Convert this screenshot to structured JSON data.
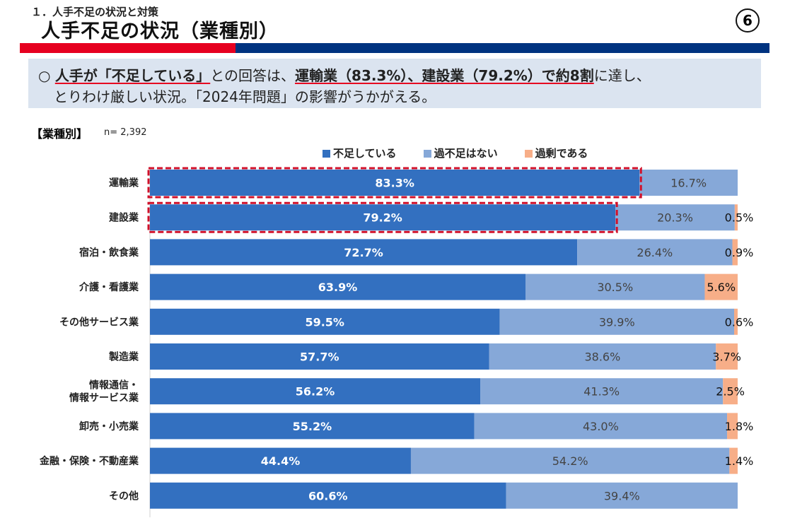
{
  "header": {
    "section": "１．人手不足の状況と対策",
    "title": "人手不足の状況（業種別）",
    "page_number": "6"
  },
  "summary": {
    "line1_parts": [
      "○ ",
      "人手が「不足している」",
      "との回答は、",
      "運輸業（83.3%）、建設業（79.2%）で約8割",
      "に達し、"
    ],
    "line2": "とりわけ厳しい状況。「2024年問題」の影響がうかがえる。"
  },
  "section_label": "【業種別】",
  "sample_size": "n= 2,392",
  "colors": {
    "shortage": "#3370c0",
    "adequate": "#86a8d8",
    "surplus": "#f7ae88",
    "accent_red": "#e60020",
    "navy": "#003380",
    "highlight_box": "#d0102a"
  },
  "chart_data": {
    "type": "bar",
    "orientation": "horizontal",
    "stacked": "100%",
    "legend": "top",
    "xlim": [
      0,
      100
    ],
    "categories": [
      "運輸業",
      "建設業",
      "宿泊・飲食業",
      "介護・看護業",
      "その他サービス業",
      "製造業",
      "情報通信・\n情報サービス業",
      "卸売・小売業",
      "金融・保険・不動産業",
      "その他"
    ],
    "series": [
      {
        "name": "不足している",
        "values": [
          83.3,
          79.2,
          72.7,
          63.9,
          59.5,
          57.7,
          56.2,
          55.2,
          44.4,
          60.6
        ]
      },
      {
        "name": "過不足はない",
        "values": [
          16.7,
          20.3,
          26.4,
          30.5,
          39.9,
          38.6,
          41.3,
          43.0,
          54.2,
          39.4
        ]
      },
      {
        "name": "過剰である",
        "values": [
          null,
          0.5,
          0.9,
          5.6,
          0.6,
          3.7,
          2.5,
          1.8,
          1.4,
          null
        ]
      }
    ],
    "highlighted_categories": [
      "運輸業",
      "建設業"
    ]
  }
}
